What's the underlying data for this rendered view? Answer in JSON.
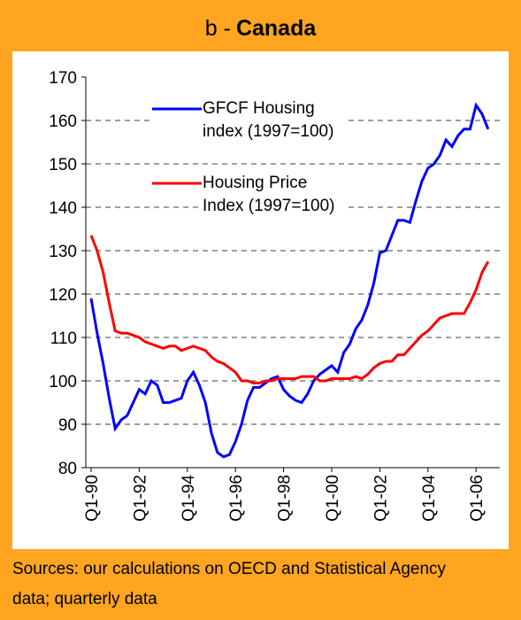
{
  "chart_data": {
    "type": "line",
    "title": [
      "b -",
      "Canada"
    ],
    "categories": [
      "Q1-90",
      null,
      null,
      null,
      null,
      null,
      null,
      null,
      "Q1-92",
      null,
      null,
      null,
      null,
      null,
      null,
      null,
      "Q1-94",
      null,
      null,
      null,
      null,
      null,
      null,
      null,
      "Q1-96",
      null,
      null,
      null,
      null,
      null,
      null,
      null,
      "Q1-98",
      null,
      null,
      null,
      null,
      null,
      null,
      null,
      "Q1-00",
      null,
      null,
      null,
      null,
      null,
      null,
      null,
      "Q1-02",
      null,
      null,
      null,
      null,
      null,
      null,
      null,
      "Q1-04",
      null,
      null,
      null,
      null,
      null,
      null,
      null,
      "Q1-06",
      null,
      null
    ],
    "series": [
      {
        "name": "GFCF Housing index (1997=100)",
        "color": "#0000ff",
        "values": [
          119,
          111,
          104,
          96,
          89,
          91,
          92,
          95,
          98,
          97,
          100,
          99,
          95,
          95,
          95.5,
          96,
          100,
          102,
          99,
          95,
          88,
          83.5,
          82.5,
          83,
          86,
          90,
          95.5,
          98.5,
          98.5,
          99.5,
          100.5,
          101,
          98,
          96.5,
          95.5,
          95,
          97,
          100,
          101.5,
          102.5,
          103.5,
          102,
          106.5,
          108.5,
          112,
          114,
          117.5,
          122.5,
          129.5,
          130,
          133.5,
          137,
          137,
          136.5,
          141.5,
          146,
          149,
          150,
          152,
          155.5,
          154,
          156.5,
          158,
          158,
          163.5,
          161.5,
          158
        ]
      },
      {
        "name": "Housing Price Index (1997=100)",
        "color": "#ff0000",
        "values": [
          133.5,
          130,
          125,
          118,
          111.5,
          111,
          111,
          110.5,
          110,
          109,
          108.5,
          108,
          107.5,
          108,
          108,
          107,
          107.5,
          108,
          107.5,
          107,
          105.5,
          104.5,
          104,
          103,
          102,
          100,
          100,
          99.5,
          99.5,
          100,
          100,
          100.5,
          100.5,
          100.5,
          100.5,
          101,
          101,
          101,
          100,
          100,
          100.5,
          100.5,
          100.5,
          100.5,
          101,
          100.5,
          101.5,
          103,
          104,
          104.5,
          104.5,
          106,
          106,
          107.5,
          109,
          110.5,
          111.5,
          113,
          114.5,
          115,
          115.5,
          115.5,
          115.5,
          118,
          121,
          125,
          127.5
        ]
      }
    ],
    "ylim": [
      80,
      170
    ],
    "yticks": [
      80,
      90,
      100,
      110,
      120,
      130,
      140,
      150,
      160,
      170
    ],
    "grid": true,
    "legend": "top-center",
    "source": "Sources: our calculations on OECD and Statistical Agency data; quarterly data"
  }
}
